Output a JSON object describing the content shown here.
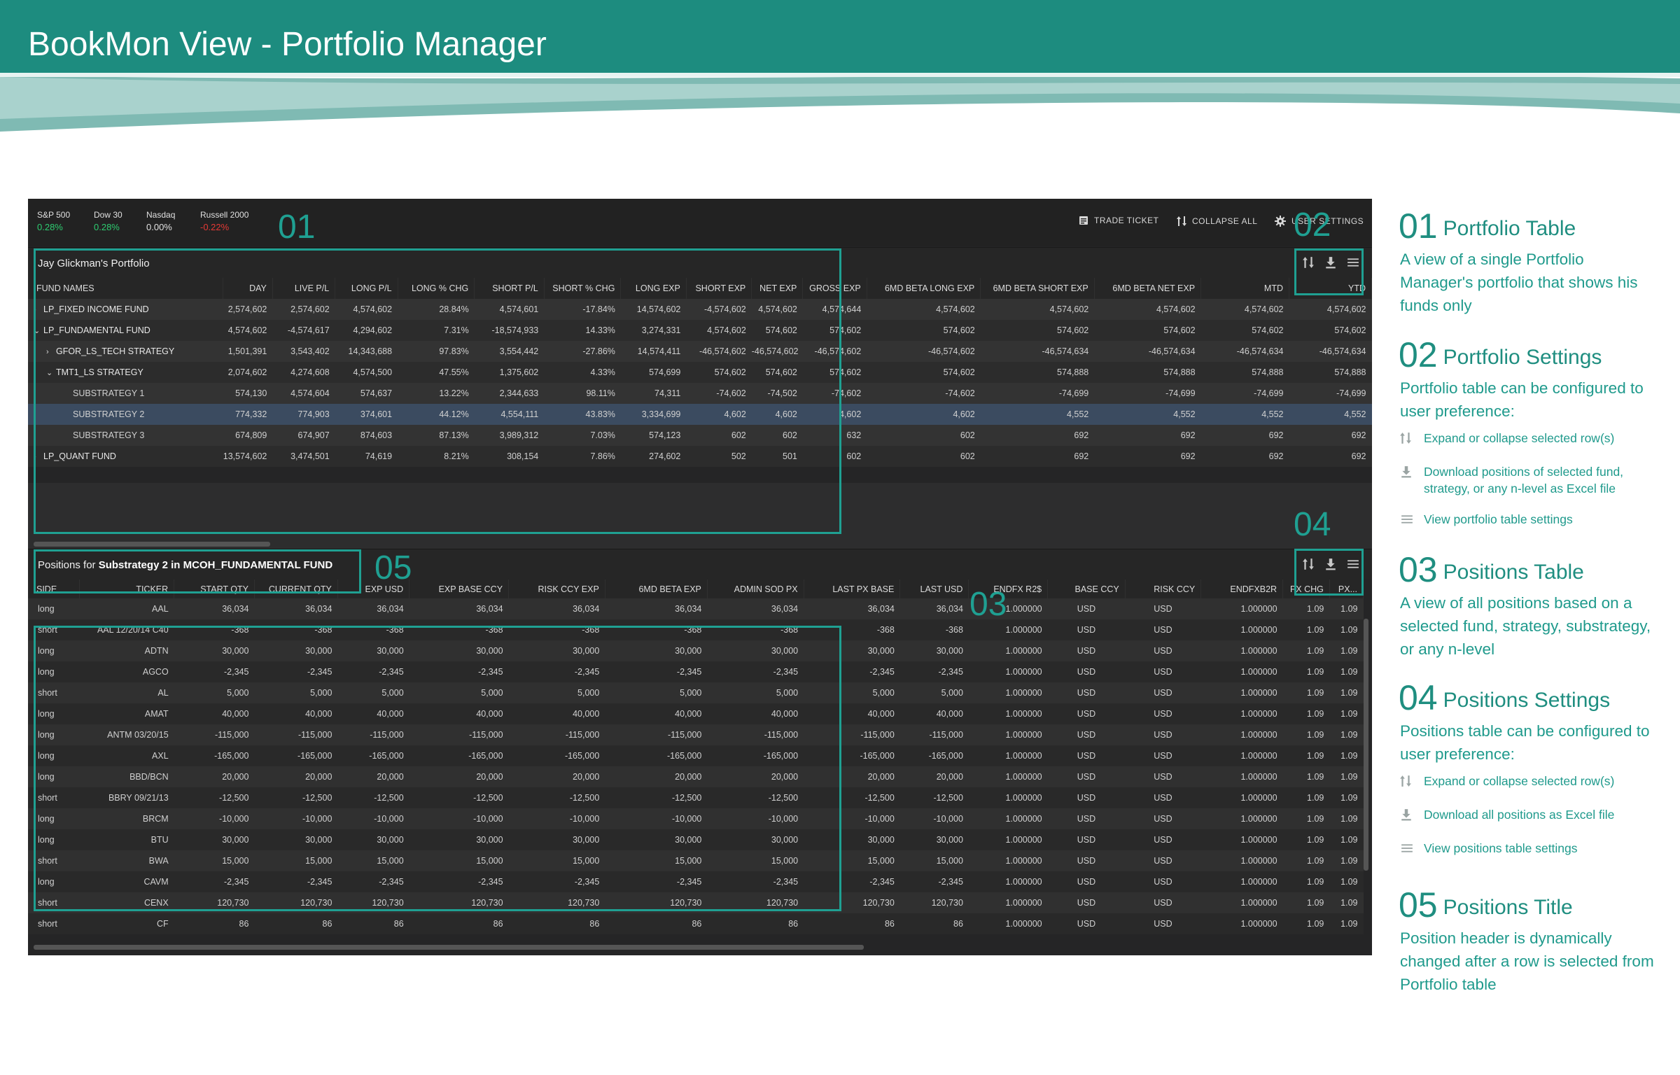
{
  "header": {
    "title": "BookMon View - Portfolio Manager",
    "color": "#1d8c7f"
  },
  "market": [
    {
      "name": "S&P 500",
      "value": "0.28%",
      "color": "#2ecc71"
    },
    {
      "name": "Dow 30",
      "value": "0.28%",
      "color": "#2ecc71"
    },
    {
      "name": "Nasdaq",
      "value": "0.00%",
      "color": "#e0e0e0"
    },
    {
      "name": "Russell 2000",
      "value": "-0.22%",
      "color": "#e53935"
    }
  ],
  "actions": {
    "trade_ticket": "TRADE TICKET",
    "collapse_all": "COLLAPSE ALL",
    "user_settings": "USER SETTINGS"
  },
  "portfolio": {
    "title": "Jay Glickman's Portfolio",
    "columns": [
      "FUND NAMES",
      "DAY",
      "LIVE P/L",
      "LONG P/L",
      "LONG % CHG",
      "SHORT P/L",
      "SHORT % CHG",
      "LONG EXP",
      "SHORT EXP",
      "NET EXP",
      "GROSS EXP",
      "6MD BETA LONG EXP",
      "6MD BETA SHORT EXP",
      "6MD BETA NET EXP",
      "MTD",
      "YTD"
    ],
    "rows": [
      {
        "name": "LP_FIXED INCOME FUND",
        "caret": "›",
        "level": 0,
        "values": [
          "2,574,602",
          "2,574,602",
          "4,574,602",
          "28.84%",
          "4,574,601",
          "-17.84%",
          "14,574,602",
          "-4,574,602",
          "4,574,602",
          "4,574,644",
          "4,574,602",
          "4,574,602",
          "4,574,602",
          "4,574,602",
          "4,574,602"
        ]
      },
      {
        "name": "LP_FUNDAMENTAL FUND",
        "caret": "⌄",
        "level": 0,
        "values": [
          "4,574,602",
          "-4,574,617",
          "4,294,602",
          "7.31%",
          "-18,574,933",
          "14.33%",
          "3,274,331",
          "4,574,602",
          "574,602",
          "574,602",
          "574,602",
          "574,602",
          "574,602",
          "574,602",
          "574,602"
        ]
      },
      {
        "name": "GFOR_LS_TECH STRATEGY",
        "caret": "›",
        "level": 1,
        "values": [
          "1,501,391",
          "3,543,402",
          "14,343,688",
          "97.83%",
          "3,554,442",
          "-27.86%",
          "14,574,411",
          "-46,574,602",
          "-46,574,602",
          "-46,574,602",
          "-46,574,602",
          "-46,574,634",
          "-46,574,634",
          "-46,574,634",
          "-46,574,634"
        ]
      },
      {
        "name": "TMT1_LS STRATEGY",
        "caret": "⌄",
        "level": 1,
        "values": [
          "2,074,602",
          "4,274,608",
          "4,574,500",
          "47.55%",
          "1,375,602",
          "4.33%",
          "574,699",
          "574,602",
          "574,602",
          "574,602",
          "574,602",
          "574,888",
          "574,888",
          "574,888",
          "574,888"
        ]
      },
      {
        "name": "SUBSTRATEGY 1",
        "caret": "",
        "level": 2,
        "values": [
          "574,130",
          "4,574,604",
          "574,637",
          "13.22%",
          "2,344,633",
          "98.11%",
          "74,311",
          "-74,602",
          "-74,502",
          "-74,602",
          "-74,602",
          "-74,699",
          "-74,699",
          "-74,699",
          "-74,699"
        ]
      },
      {
        "name": "SUBSTRATEGY 2",
        "caret": "",
        "level": 2,
        "selected": true,
        "values": [
          "774,332",
          "774,903",
          "374,601",
          "44.12%",
          "4,554,111",
          "43.83%",
          "3,334,699",
          "4,602",
          "4,602",
          "4,602",
          "4,602",
          "4,552",
          "4,552",
          "4,552",
          "4,552"
        ]
      },
      {
        "name": "SUBSTRATEGY 3",
        "caret": "",
        "level": 2,
        "values": [
          "674,809",
          "674,907",
          "874,603",
          "87.13%",
          "3,989,312",
          "7.03%",
          "574,123",
          "602",
          "602",
          "632",
          "602",
          "692",
          "692",
          "692",
          "692"
        ]
      },
      {
        "name": "LP_QUANT FUND",
        "caret": "›",
        "level": 0,
        "values": [
          "13,574,602",
          "3,474,501",
          "74,619",
          "8.21%",
          "308,154",
          "7.86%",
          "274,602",
          "502",
          "501",
          "602",
          "602",
          "692",
          "692",
          "692",
          "692"
        ]
      }
    ]
  },
  "positions": {
    "title_prefix": "Positions for",
    "title_bold": "Substrategy 2 in MCOH_FUNDAMENTAL FUND",
    "columns": [
      "SIDE",
      "TICKER",
      "START QTY",
      "CURRENT QTY",
      "EXP USD",
      "EXP BASE CCY",
      "RISK CCY EXP",
      "6MD BETA EXP",
      "ADMIN SOD PX",
      "LAST PX BASE",
      "LAST USD",
      "ENDFX R2$",
      "BASE CCY",
      "RISK CCY",
      "ENDFXB2R",
      "PX CHG",
      "PX..."
    ],
    "rows": [
      [
        "long",
        "AAL",
        "36,034",
        "36,034",
        "36,034",
        "36,034",
        "36,034",
        "36,034",
        "36,034",
        "36,034",
        "36,034",
        "1.000000",
        "USD",
        "USD",
        "1.000000",
        "1.09",
        "1.09"
      ],
      [
        "short",
        "AAL 12/20/14 C40",
        "-368",
        "-368",
        "-368",
        "-368",
        "-368",
        "-368",
        "-368",
        "-368",
        "-368",
        "1.000000",
        "USD",
        "USD",
        "1.000000",
        "1.09",
        "1.09"
      ],
      [
        "long",
        "ADTN",
        "30,000",
        "30,000",
        "30,000",
        "30,000",
        "30,000",
        "30,000",
        "30,000",
        "30,000",
        "30,000",
        "1.000000",
        "USD",
        "USD",
        "1.000000",
        "1.09",
        "1.09"
      ],
      [
        "long",
        "AGCO",
        "-2,345",
        "-2,345",
        "-2,345",
        "-2,345",
        "-2,345",
        "-2,345",
        "-2,345",
        "-2,345",
        "-2,345",
        "1.000000",
        "USD",
        "USD",
        "1.000000",
        "1.09",
        "1.09"
      ],
      [
        "short",
        "AL",
        "5,000",
        "5,000",
        "5,000",
        "5,000",
        "5,000",
        "5,000",
        "5,000",
        "5,000",
        "5,000",
        "1.000000",
        "USD",
        "USD",
        "1.000000",
        "1.09",
        "1.09"
      ],
      [
        "long",
        "AMAT",
        "40,000",
        "40,000",
        "40,000",
        "40,000",
        "40,000",
        "40,000",
        "40,000",
        "40,000",
        "40,000",
        "1.000000",
        "USD",
        "USD",
        "1.000000",
        "1.09",
        "1.09"
      ],
      [
        "long",
        "ANTM 03/20/15",
        "-115,000",
        "-115,000",
        "-115,000",
        "-115,000",
        "-115,000",
        "-115,000",
        "-115,000",
        "-115,000",
        "-115,000",
        "1.000000",
        "USD",
        "USD",
        "1.000000",
        "1.09",
        "1.09"
      ],
      [
        "long",
        "AXL",
        "-165,000",
        "-165,000",
        "-165,000",
        "-165,000",
        "-165,000",
        "-165,000",
        "-165,000",
        "-165,000",
        "-165,000",
        "1.000000",
        "USD",
        "USD",
        "1.000000",
        "1.09",
        "1.09"
      ],
      [
        "long",
        "BBD/BCN",
        "20,000",
        "20,000",
        "20,000",
        "20,000",
        "20,000",
        "20,000",
        "20,000",
        "20,000",
        "20,000",
        "1.000000",
        "USD",
        "USD",
        "1.000000",
        "1.09",
        "1.09"
      ],
      [
        "short",
        "BBRY 09/21/13",
        "-12,500",
        "-12,500",
        "-12,500",
        "-12,500",
        "-12,500",
        "-12,500",
        "-12,500",
        "-12,500",
        "-12,500",
        "1.000000",
        "USD",
        "USD",
        "1.000000",
        "1.09",
        "1.09"
      ],
      [
        "long",
        "BRCM",
        "-10,000",
        "-10,000",
        "-10,000",
        "-10,000",
        "-10,000",
        "-10,000",
        "-10,000",
        "-10,000",
        "-10,000",
        "1.000000",
        "USD",
        "USD",
        "1.000000",
        "1.09",
        "1.09"
      ],
      [
        "long",
        "BTU",
        "30,000",
        "30,000",
        "30,000",
        "30,000",
        "30,000",
        "30,000",
        "30,000",
        "30,000",
        "30,000",
        "1.000000",
        "USD",
        "USD",
        "1.000000",
        "1.09",
        "1.09"
      ],
      [
        "short",
        "BWA",
        "15,000",
        "15,000",
        "15,000",
        "15,000",
        "15,000",
        "15,000",
        "15,000",
        "15,000",
        "15,000",
        "1.000000",
        "USD",
        "USD",
        "1.000000",
        "1.09",
        "1.09"
      ],
      [
        "long",
        "CAVM",
        "-2,345",
        "-2,345",
        "-2,345",
        "-2,345",
        "-2,345",
        "-2,345",
        "-2,345",
        "-2,345",
        "-2,345",
        "1.000000",
        "USD",
        "USD",
        "1.000000",
        "1.09",
        "1.09"
      ],
      [
        "short",
        "CENX",
        "120,730",
        "120,730",
        "120,730",
        "120,730",
        "120,730",
        "120,730",
        "120,730",
        "120,730",
        "120,730",
        "1.000000",
        "USD",
        "USD",
        "1.000000",
        "1.09",
        "1.09"
      ],
      [
        "short",
        "CF",
        "86",
        "86",
        "86",
        "86",
        "86",
        "86",
        "86",
        "86",
        "86",
        "1.000000",
        "USD",
        "USD",
        "1.000000",
        "1.09",
        "1.09"
      ]
    ]
  },
  "callouts": {
    "c01": "01",
    "c02": "02",
    "c03": "03",
    "c04": "04",
    "c05": "05"
  },
  "legend": [
    {
      "num": "01",
      "title": "Portfolio Table",
      "desc": "A view of a single Portfolio Manager's portfolio that shows his funds only",
      "items": []
    },
    {
      "num": "02",
      "title": "Portfolio Settings",
      "desc": "Portfolio table can be configured to user preference:",
      "items": [
        {
          "icon": "sort-icon",
          "text": "Expand or collapse selected row(s)"
        },
        {
          "icon": "download-icon",
          "text": "Download positions of selected fund, strategy, or any n-level as Excel file"
        },
        {
          "icon": "menu-icon",
          "text": "View portfolio table settings"
        }
      ]
    },
    {
      "num": "03",
      "title": "Positions Table",
      "desc": "A view of all positions based on a selected fund, strategy, substrategy, or any n-level",
      "items": []
    },
    {
      "num": "04",
      "title": "Positions Settings",
      "desc": "Positions table can be configured to user preference:",
      "items": [
        {
          "icon": "sort-icon",
          "text": "Expand or collapse selected row(s)"
        },
        {
          "icon": "download-icon",
          "text": "Download all positions as Excel file"
        },
        {
          "icon": "menu-icon",
          "text": "View positions table settings"
        }
      ]
    },
    {
      "num": "05",
      "title": "Positions Title",
      "desc": "Position header is dynamically changed after a row is selected from Portfolio table",
      "items": []
    }
  ],
  "colors": {
    "accent": "#1fa092",
    "selected_row": "#3b4b60",
    "app_bg": "#252526"
  }
}
